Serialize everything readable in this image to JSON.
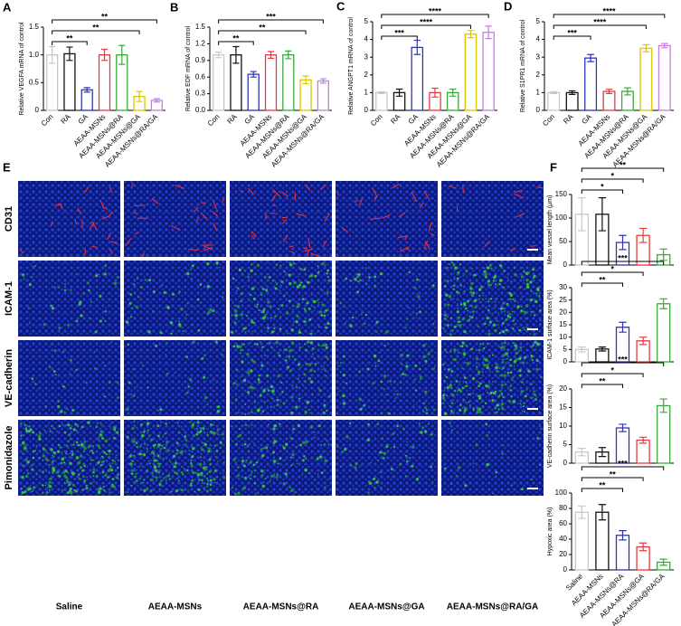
{
  "chart_data": [
    {
      "type": "bar",
      "panel": "A",
      "ylabel": "Relative VEGFA mRNA of control",
      "categories": [
        "Con",
        "RA",
        "GA",
        "AEAA-MSNs",
        "AEAA-MSNs@RA",
        "AEAA-MSNs@GA",
        "AEAA-MSNs@RA/GA"
      ],
      "values": [
        1.0,
        1.02,
        0.37,
        1.0,
        1.0,
        0.25,
        0.18
      ],
      "errors": [
        0.15,
        0.12,
        0.04,
        0.1,
        0.17,
        0.09,
        0.03
      ],
      "colors": [
        "#c8c8c8",
        "#111111",
        "#2b35b5",
        "#e8383d",
        "#3aa83a",
        "#d8c800",
        "#c47fdc"
      ],
      "ylim": [
        0,
        1.5
      ],
      "yticks": [
        0,
        0.5,
        {
          "value": 1,
          "label": "1.0"
        },
        1.5
      ],
      "brackets": [
        {
          "to": "GA",
          "label": "**"
        },
        {
          "to": "AEAA-MSNs@GA",
          "label": "**"
        },
        {
          "to": "AEAA-MSNs@RA/GA",
          "label": "**"
        }
      ]
    },
    {
      "type": "bar",
      "panel": "B",
      "ylabel": "Relative EDF mRNA of control",
      "categories": [
        "Con",
        "RA",
        "GA",
        "AEAA-MSNs",
        "AEAA-MSNs@RA",
        "AEAA-MSNs@GA",
        "AEAA-MSNs@RA/GA"
      ],
      "values": [
        1.0,
        1.0,
        0.65,
        1.0,
        1.0,
        0.55,
        0.53
      ],
      "errors": [
        0.05,
        0.15,
        0.05,
        0.06,
        0.07,
        0.07,
        0.04
      ],
      "colors": [
        "#c8c8c8",
        "#111111",
        "#2b35b5",
        "#e8383d",
        "#3aa83a",
        "#d8c800",
        "#c47fdc"
      ],
      "ylim": [
        0,
        1.5
      ],
      "yticks": [
        {
          "value": 0,
          "label": "0.0"
        },
        0.3,
        0.6,
        0.9,
        1.2,
        1.5
      ],
      "brackets": [
        {
          "to": "GA",
          "label": "**"
        },
        {
          "to": "AEAA-MSNs@GA",
          "label": "**"
        },
        {
          "to": "AEAA-MSNs@RA/GA",
          "label": "***"
        }
      ]
    },
    {
      "type": "bar",
      "panel": "C",
      "ylabel": "Relative ANGPT1 mRNA of control",
      "categories": [
        "Con",
        "RA",
        "GA",
        "AEAA-MSNs",
        "AEAA-MSNs@RA",
        "AEAA-MSNs@GA",
        "AEAA-MSNs@RA/GA"
      ],
      "values": [
        1.0,
        1.0,
        3.55,
        1.0,
        1.0,
        4.3,
        4.4
      ],
      "errors": [
        0.05,
        0.2,
        0.4,
        0.25,
        0.2,
        0.2,
        0.35
      ],
      "colors": [
        "#c8c8c8",
        "#111111",
        "#2b35b5",
        "#e8383d",
        "#3aa83a",
        "#d8c800",
        "#c47fdc"
      ],
      "ylim": [
        0,
        5
      ],
      "yticks": [
        0,
        1,
        2,
        3,
        4,
        5
      ],
      "brackets": [
        {
          "to": "GA",
          "label": "***"
        },
        {
          "to": "AEAA-MSNs@GA",
          "label": "****"
        },
        {
          "to": "AEAA-MSNs@RA/GA",
          "label": "****"
        }
      ]
    },
    {
      "type": "bar",
      "panel": "D",
      "ylabel": "Relative S1PR1 mRNA of control",
      "categories": [
        "Con",
        "RA",
        "GA",
        "AEAA-MSNs",
        "AEAA-MSNs@RA",
        "AEAA-MSNs@GA",
        "AEAA-MSNs@RA/GA"
      ],
      "values": [
        1.0,
        1.0,
        2.95,
        1.07,
        1.07,
        3.5,
        3.65
      ],
      "errors": [
        0.05,
        0.1,
        0.2,
        0.12,
        0.2,
        0.2,
        0.12
      ],
      "colors": [
        "#c8c8c8",
        "#111111",
        "#2b35b5",
        "#e8383d",
        "#3aa83a",
        "#d8c800",
        "#c47fdc"
      ],
      "ylim": [
        0,
        5
      ],
      "yticks": [
        0,
        1,
        2,
        3,
        4,
        5
      ],
      "brackets": [
        {
          "to": "GA",
          "label": "***"
        },
        {
          "to": "AEAA-MSNs@GA",
          "label": "****"
        },
        {
          "to": "AEAA-MSNs@RA/GA",
          "label": "****"
        }
      ]
    },
    {
      "type": "image-grid",
      "panel": "E",
      "rows": [
        "CD31",
        "ICAM-1",
        "VE-cadherin",
        "Pimonidazole"
      ],
      "columns": [
        "Saline",
        "AEAA-MSNs",
        "AEAA-MSNs@RA",
        "AEAA-MSNs@GA",
        "AEAA-MSNs@RA/GA"
      ]
    },
    {
      "type": "bar-panels",
      "panel": "F",
      "categories": [
        "Saline",
        "AEAA-MSNs",
        "AEAA-MSNs@RA",
        "AEAA-MSNs@GA",
        "AEAA-MSNs@RA/GA"
      ],
      "colors": [
        "#c8c8c8",
        "#111111",
        "#2b35b5",
        "#e8383d",
        "#3aa83a"
      ],
      "subplots": [
        {
          "ylabel": "Mean vessel length (μm)",
          "values": [
            108,
            108,
            48,
            63,
            22
          ],
          "errors": [
            35,
            35,
            15,
            15,
            12
          ],
          "ylim": [
            0,
            150
          ],
          "yticks": [
            0,
            50,
            100,
            150
          ],
          "brackets": [
            {
              "to": "AEAA-MSNs@RA",
              "label": "*"
            },
            {
              "to": "AEAA-MSNs@GA",
              "label": "*"
            },
            {
              "to": "AEAA-MSNs@RA/GA",
              "label": "**"
            }
          ]
        },
        {
          "ylabel": "ICAM-1 surface area (%)",
          "values": [
            5,
            5.2,
            14,
            8.5,
            23.5
          ],
          "errors": [
            1,
            0.8,
            2,
            1.5,
            2
          ],
          "ylim": [
            0,
            30
          ],
          "yticks": [
            0,
            5,
            10,
            15,
            20,
            25,
            30
          ],
          "brackets": [
            {
              "to": "AEAA-MSNs@RA",
              "label": "**"
            },
            {
              "to": "AEAA-MSNs@GA",
              "label": "*"
            },
            {
              "to": "AEAA-MSNs@RA/GA",
              "label": "***"
            }
          ]
        },
        {
          "ylabel": "VE-cadherin surface area (%)",
          "values": [
            3,
            3,
            9.5,
            6.2,
            15.5
          ],
          "errors": [
            1,
            1.2,
            1,
            0.8,
            1.8
          ],
          "ylim": [
            0,
            20
          ],
          "yticks": [
            0,
            5,
            10,
            15,
            20
          ],
          "brackets": [
            {
              "to": "AEAA-MSNs@RA",
              "label": "**"
            },
            {
              "to": "AEAA-MSNs@GA",
              "label": "*"
            },
            {
              "to": "AEAA-MSNs@RA/GA",
              "label": "***"
            }
          ]
        },
        {
          "ylabel": "Hypoxic area (%)",
          "values": [
            75,
            75,
            45,
            30,
            10
          ],
          "errors": [
            8,
            10,
            6,
            5,
            4
          ],
          "ylim": [
            0,
            100
          ],
          "yticks": [
            0,
            20,
            40,
            60,
            80,
            100
          ],
          "brackets": [
            {
              "to": "AEAA-MSNs@RA",
              "label": "**"
            },
            {
              "to": "AEAA-MSNs@GA",
              "label": "**"
            },
            {
              "to": "AEAA-MSNs@RA/GA",
              "label": "***"
            }
          ]
        }
      ]
    }
  ]
}
